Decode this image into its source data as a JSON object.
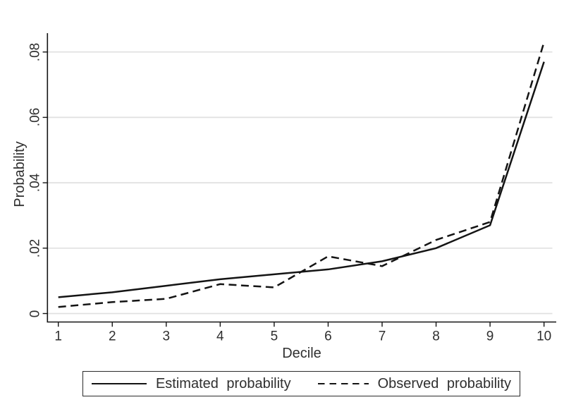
{
  "figure": {
    "background": "#ffffff",
    "text_color": "#2f2f2f",
    "axis_color": "#141414",
    "gridline_color": "#e0e0e0",
    "series_line_color": "#141414"
  },
  "chart_data": {
    "type": "line",
    "title": "",
    "xlabel": "Decile",
    "ylabel": "Probability",
    "x": [
      1,
      2,
      3,
      4,
      5,
      6,
      7,
      8,
      9,
      10
    ],
    "x_tick_labels": [
      "1",
      "2",
      "3",
      "4",
      "5",
      "6",
      "7",
      "8",
      "9",
      "10"
    ],
    "y_tick_labels": [
      "0",
      ".02",
      ".04",
      ".06",
      ".08"
    ],
    "y_tick_values": [
      0,
      0.02,
      0.04,
      0.06,
      0.08
    ],
    "ylim": [
      0,
      0.086
    ],
    "xlim": [
      0.8,
      10.25
    ],
    "grid": "horizontal-only",
    "legend_position": "bottom-center-boxed",
    "series": [
      {
        "name": "Estimated probability",
        "style": "solid",
        "values": [
          0.005,
          0.0065,
          0.0085,
          0.0105,
          0.012,
          0.0135,
          0.016,
          0.02,
          0.027,
          0.077
        ]
      },
      {
        "name": "Observed probability",
        "style": "dashed",
        "values": [
          0.002,
          0.0035,
          0.0045,
          0.009,
          0.008,
          0.0175,
          0.0145,
          0.0225,
          0.028,
          0.083
        ]
      }
    ]
  }
}
